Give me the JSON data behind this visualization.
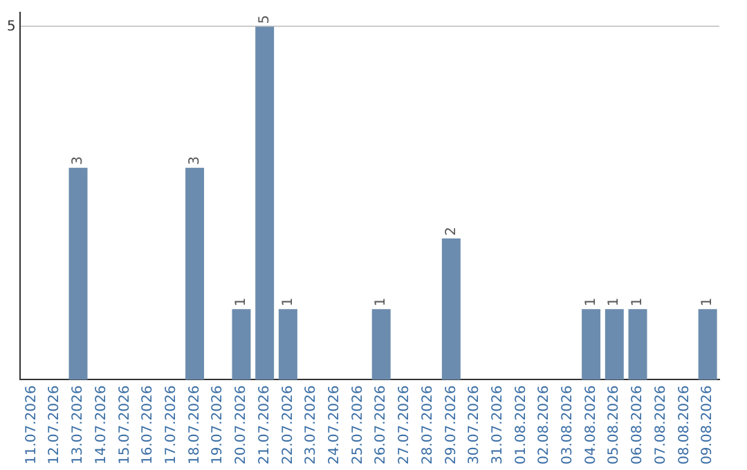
{
  "chart_data": {
    "type": "bar",
    "categories": [
      "11.07.2026",
      "12.07.2026",
      "13.07.2026",
      "14.07.2026",
      "15.07.2026",
      "16.07.2026",
      "17.07.2026",
      "18.07.2026",
      "19.07.2026",
      "20.07.2026",
      "21.07.2026",
      "22.07.2026",
      "23.07.2026",
      "24.07.2026",
      "25.07.2026",
      "26.07.2026",
      "27.07.2026",
      "28.07.2026",
      "29.07.2026",
      "30.07.2026",
      "31.07.2026",
      "01.08.2026",
      "02.08.2026",
      "03.08.2026",
      "04.08.2026",
      "05.08.2026",
      "06.08.2026",
      "07.08.2026",
      "08.08.2026",
      "09.08.2026"
    ],
    "values": [
      0,
      0,
      3,
      0,
      0,
      0,
      0,
      3,
      0,
      1,
      5,
      1,
      0,
      0,
      0,
      1,
      0,
      0,
      2,
      0,
      0,
      0,
      0,
      0,
      1,
      1,
      1,
      0,
      0,
      1
    ],
    "value_labels": [
      null,
      null,
      "3",
      null,
      null,
      null,
      null,
      "3",
      null,
      "1",
      "5",
      "1",
      null,
      null,
      null,
      "1",
      null,
      null,
      "2",
      null,
      null,
      null,
      null,
      null,
      "1",
      "1",
      "1",
      null,
      null,
      "1"
    ],
    "color": "#6b8cae",
    "ylim": [
      0,
      5.2
    ],
    "yticks": [
      5
    ],
    "grid": "y",
    "legend": false
  }
}
